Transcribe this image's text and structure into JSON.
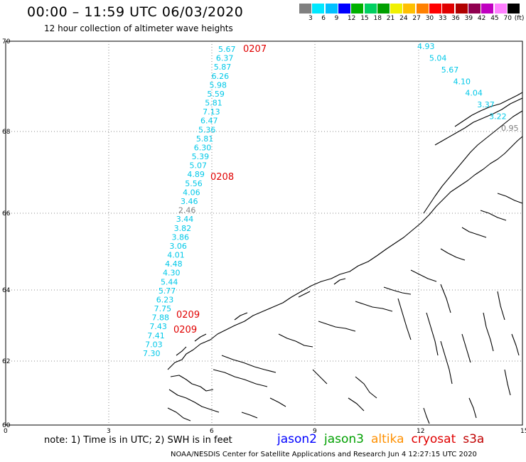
{
  "header": {
    "title": "00:00 – 11:59 UTC 06/03/2020",
    "subtitle": "12 hour collection of altimeter wave heights"
  },
  "colorbar": {
    "unit": "(ft)",
    "ticks": [
      "3",
      "6",
      "9",
      "12",
      "15",
      "18",
      "21",
      "24",
      "27",
      "30",
      "33",
      "36",
      "39",
      "42",
      "45",
      "70"
    ],
    "colors": [
      "#808080",
      "#00e8ff",
      "#00c0ff",
      "#0000ff",
      "#00b000",
      "#00d060",
      "#00a000",
      "#f0f000",
      "#ffc000",
      "#ff8000",
      "#ff0000",
      "#e00000",
      "#b00000",
      "#900050",
      "#c000c0",
      "#ff80ff",
      "#000000"
    ]
  },
  "axes": {
    "lat_ticks": [
      "70",
      "68",
      "66",
      "64",
      "62",
      "60"
    ],
    "lon_ticks": [
      "0",
      "3",
      "6",
      "9",
      "12",
      "15"
    ]
  },
  "tracks": [
    {
      "pass": "0207",
      "color": "#00c8e8",
      "values": [
        "5.67",
        "6.37",
        "5.87",
        "6.26",
        "5.98",
        "5.59",
        "5.81",
        "7.13",
        "6.47",
        "5.36",
        "5.81",
        "6.30",
        "5.39",
        "5.07",
        "4.89",
        "5.56",
        "4.06",
        "3.46",
        "2.46",
        "3.44",
        "3.82",
        "3.86",
        "3.06",
        "4.01",
        "4.48",
        "4.30",
        "5.44",
        "5.77",
        "6.23",
        "7.75",
        "7.88",
        "7.43",
        "7.41",
        "7.03",
        "7.30"
      ]
    },
    {
      "pass": "0208",
      "color": "#00c8e8",
      "values": [
        "4.93",
        "5.04",
        "5.67",
        "4.10",
        "4.04",
        "3.37",
        "3.22",
        "0.95"
      ]
    }
  ],
  "pass_labels": [
    "0207",
    "0208",
    "0209",
    "0209"
  ],
  "legend": {
    "note": "note:  1) Time is in UTC;  2) SWH is in feet",
    "missions": [
      {
        "name": "jason2",
        "color": "#0000ff"
      },
      {
        "name": "jason3",
        "color": "#00a000"
      },
      {
        "name": "altika",
        "color": "#ff9000"
      },
      {
        "name": "cryosat",
        "color": "#e00000"
      },
      {
        "name": "s3a",
        "color": "#c00000"
      }
    ]
  },
  "footer": {
    "credit": "NOAA/NESDIS Center for Satellite Applications and Research    Jun  4 12:27:15 UTC 2020"
  }
}
